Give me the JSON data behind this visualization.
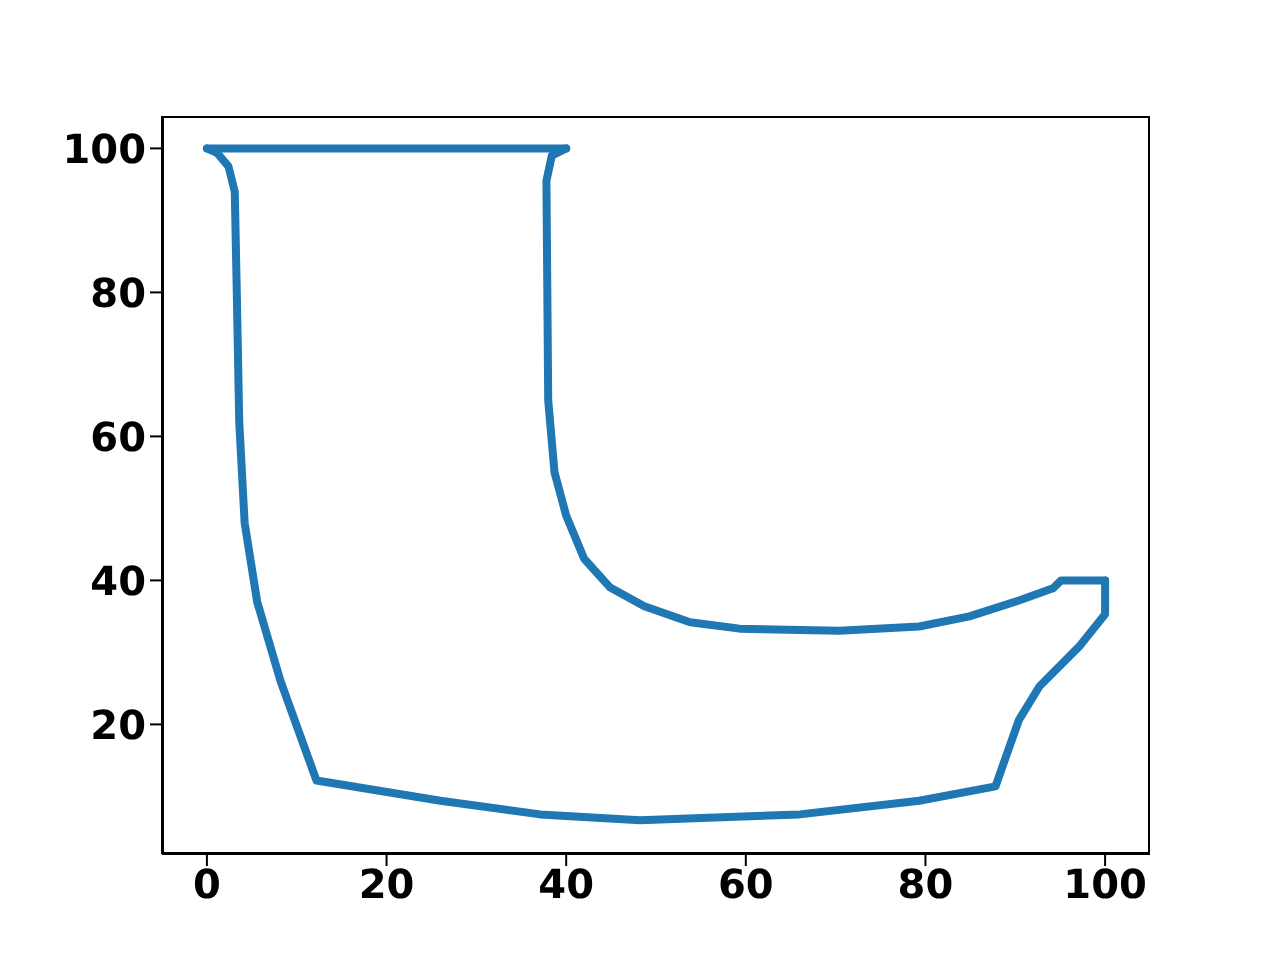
{
  "chart_data": {
    "type": "line",
    "marker": "none",
    "line_style": "solid",
    "series": [
      {
        "color": "#1f77b4",
        "x": [
          0,
          40
        ],
        "values": [
          100,
          100
        ]
      },
      {
        "color": "#1f77b4",
        "x": [
          40,
          38.4,
          37.8,
          38,
          38.7,
          40,
          42,
          44.9,
          48.7,
          53.8,
          59.3,
          70.4,
          79.3,
          84.9,
          90.4,
          94.2,
          95.1,
          100
        ],
        "values": [
          100,
          99,
          95.5,
          65,
          55,
          49,
          43,
          39,
          36.4,
          34.2,
          33.3,
          33,
          33.6,
          35,
          37.2,
          38.9,
          40,
          40
        ]
      },
      {
        "color": "#1f77b4",
        "x": [
          100,
          100,
          97.1,
          92.7,
          90.4,
          87.8,
          79.3,
          66,
          48.2,
          37.1,
          26,
          12.2,
          8.2,
          5.6,
          4.2,
          3.6,
          3.3,
          3.1,
          2.4,
          1.1,
          0
        ],
        "values": [
          40,
          35.3,
          30.8,
          25.3,
          20.6,
          11.4,
          9.4,
          7.5,
          6.7,
          7.5,
          9.4,
          12.2,
          26,
          37,
          48,
          62,
          81.7,
          94,
          97.5,
          99.4,
          100
        ]
      }
    ],
    "xlim": [
      -5,
      105
    ],
    "ylim": [
      2,
      104.5
    ],
    "xticks": [
      0,
      20,
      40,
      60,
      80,
      100
    ],
    "yticks": [
      20,
      40,
      60,
      80,
      100
    ]
  }
}
